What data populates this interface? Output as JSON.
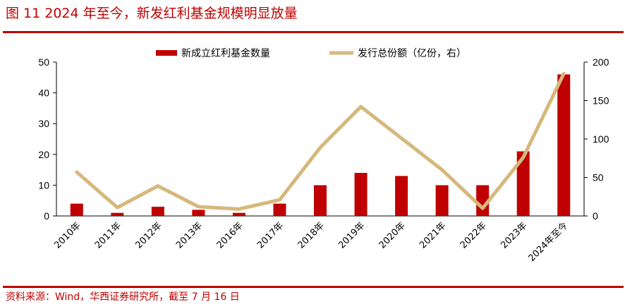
{
  "header": {
    "title": "图 11 2024 年至今，新发红利基金规模明显放量"
  },
  "footer": {
    "source": "资料来源：Wind，华西证券研究所，截至 7 月 16 日"
  },
  "colors": {
    "accent": "#c00000",
    "bar": "#c00000",
    "line": "#d6b87c"
  },
  "chart_data": {
    "type": "bar",
    "categories": [
      "2010年",
      "2011年",
      "2012年",
      "2013年",
      "2016年",
      "2017年",
      "2018年",
      "2019年",
      "2020年",
      "2021年",
      "2022年",
      "2023年",
      "2024年至今"
    ],
    "series": [
      {
        "name": "新成立红利基金数量",
        "type": "bar",
        "axis": "left",
        "values": [
          4,
          1,
          3,
          2,
          1,
          4,
          10,
          14,
          13,
          10,
          10,
          21,
          46
        ]
      },
      {
        "name": "发行总份额（亿份，右）",
        "type": "line",
        "axis": "right",
        "values": [
          57,
          11,
          39,
          12,
          9,
          21,
          89,
          142,
          101,
          60,
          10,
          76,
          185
        ]
      }
    ],
    "yleft": {
      "ylim": [
        0,
        50
      ],
      "ticks": [
        "0",
        "10",
        "20",
        "30",
        "40",
        "50"
      ]
    },
    "yright": {
      "ylim": [
        0,
        200
      ],
      "ticks": [
        "0",
        "50",
        "100",
        "150",
        "200"
      ]
    },
    "legend_position": "top"
  }
}
